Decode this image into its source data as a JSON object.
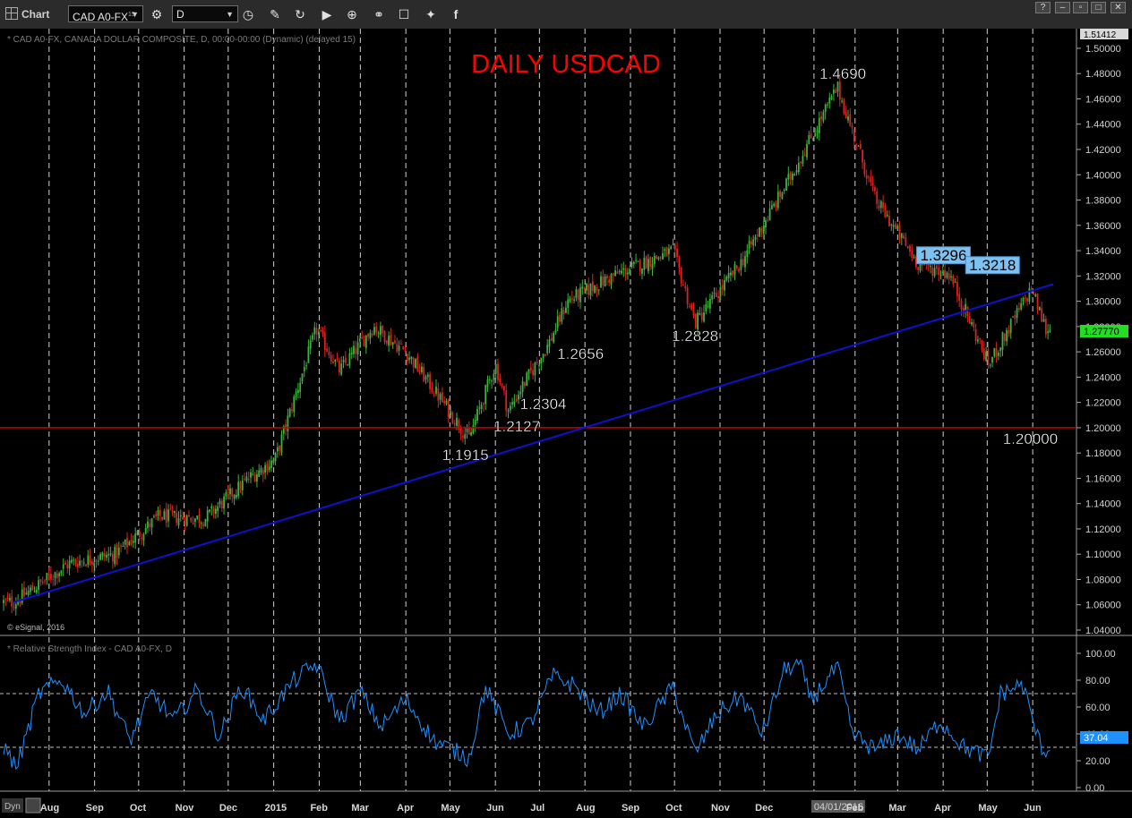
{
  "toolbar": {
    "app_label": "Chart",
    "symbol": "CAD A0-FX",
    "symbol_superscript": "15",
    "interval": "D"
  },
  "price_panel": {
    "legend": "* CAD A0-FX, CANADA DOLLAR COMPOSITE, D, 00:00-00:00 (Dynamic) (delayed 15)",
    "copyright": "© eSignal, 2016",
    "last_price_label": "1.27770",
    "top_price_label": "1.51412"
  },
  "rsi_panel": {
    "legend": "* Relative Strength Index - CAD A0-FX, D",
    "current_label": "37.04",
    "corner_label": "Dyn"
  },
  "colors": {
    "background": "#000000",
    "bull": "#3db33d",
    "bear": "#dd2222",
    "trendline": "#1010cc",
    "support": "#cc0000",
    "rsi_line": "#1e90ff",
    "title": "#ff0000",
    "highlight": "#7ec0ee"
  },
  "chart_data": [
    {
      "type": "candlestick",
      "title": "DAILY USDCAD",
      "x_labels": [
        "Aug",
        "Sep",
        "Oct",
        "Nov",
        "Dec",
        "2015",
        "Feb",
        "Mar",
        "Apr",
        "May",
        "Jun",
        "Jul",
        "Aug",
        "Sep",
        "Oct",
        "Nov",
        "Dec",
        "04/01/2016",
        "Feb",
        "Mar",
        "Apr",
        "May",
        "Jun"
      ],
      "ylim": [
        1.04,
        1.51412
      ],
      "y_ticks": [
        "1.04000",
        "1.06000",
        "1.08000",
        "1.10000",
        "1.12000",
        "1.14000",
        "1.16000",
        "1.18000",
        "1.20000",
        "1.22000",
        "1.24000",
        "1.26000",
        "1.28000",
        "1.30000",
        "1.32000",
        "1.34000",
        "1.36000",
        "1.38000",
        "1.40000",
        "1.42000",
        "1.44000",
        "1.46000",
        "1.48000",
        "1.50000"
      ],
      "key_points": [
        {
          "date": "2014-07-08",
          "close": 1.062
        },
        {
          "date": "2014-08-15",
          "close": 1.093
        },
        {
          "date": "2014-09-15",
          "close": 1.1
        },
        {
          "date": "2014-10-15",
          "close": 1.13
        },
        {
          "date": "2014-11-15",
          "close": 1.128
        },
        {
          "date": "2014-12-15",
          "close": 1.16
        },
        {
          "date": "2015-01-02",
          "close": 1.175
        },
        {
          "date": "2015-01-30",
          "close": 1.278
        },
        {
          "date": "2015-02-15",
          "close": 1.245
        },
        {
          "date": "2015-03-10",
          "close": 1.28
        },
        {
          "date": "2015-04-01",
          "close": 1.26
        },
        {
          "date": "2015-04-20",
          "close": 1.23
        },
        {
          "date": "2015-05-14",
          "close": 1.1915
        },
        {
          "date": "2015-06-01",
          "close": 1.25
        },
        {
          "date": "2015-06-18",
          "close": 1.2304
        },
        {
          "date": "2015-06-10",
          "close": 1.2127
        },
        {
          "date": "2015-07-07",
          "close": 1.2656
        },
        {
          "date": "2015-07-20",
          "close": 1.3
        },
        {
          "date": "2015-08-20",
          "close": 1.32
        },
        {
          "date": "2015-09-30",
          "close": 1.34
        },
        {
          "date": "2015-10-15",
          "close": 1.2828
        },
        {
          "date": "2015-11-15",
          "close": 1.33
        },
        {
          "date": "2015-12-15",
          "close": 1.39
        },
        {
          "date": "2016-01-20",
          "close": 1.469
        },
        {
          "date": "2016-02-15",
          "close": 1.38
        },
        {
          "date": "2016-03-15",
          "close": 1.3296
        },
        {
          "date": "2016-04-05",
          "close": 1.3218
        },
        {
          "date": "2016-05-02",
          "close": 1.25
        },
        {
          "date": "2016-05-31",
          "close": 1.31
        },
        {
          "date": "2016-06-10",
          "close": 1.2777
        }
      ],
      "annotations": [
        {
          "text": "1.4690",
          "date": "2016-01-20",
          "value": 1.469
        },
        {
          "text": "1.3296",
          "date": "2016-03-20",
          "value": 1.3296,
          "boxed": true
        },
        {
          "text": "1.3218",
          "date": "2016-04-20",
          "value": 1.3218,
          "boxed": true
        },
        {
          "text": "1.2828",
          "date": "2015-10-15",
          "value": 1.2828
        },
        {
          "text": "1.2656",
          "date": "2015-07-07",
          "value": 1.2656
        },
        {
          "text": "1.2304",
          "date": "2015-06-25",
          "value": 1.2304
        },
        {
          "text": "1.2127",
          "date": "2015-06-18",
          "value": 1.2127
        },
        {
          "text": "1.1915",
          "date": "2015-05-14",
          "value": 1.1915
        },
        {
          "text": "1.20000",
          "date": "2016-06-05",
          "value": 1.2
        }
      ],
      "support_line": 1.2,
      "trendline": [
        {
          "date": "2014-07-08",
          "value": 1.062
        },
        {
          "date": "2016-06-15",
          "value": 1.3135
        }
      ]
    },
    {
      "type": "line",
      "title": "Relative Strength Index - CAD A0-FX, D",
      "ylim": [
        -5,
        110
      ],
      "y_ticks": [
        "0.00",
        "20.00",
        "40.00",
        "60.00",
        "80.00",
        "100.00"
      ],
      "reference_levels": [
        70,
        30
      ],
      "series": [
        {
          "name": "Relative Strength Index",
          "points": [
            {
              "date": "2014-07-01",
              "value": 30
            },
            {
              "date": "2014-07-10",
              "value": 15
            },
            {
              "date": "2014-07-25",
              "value": 70
            },
            {
              "date": "2014-08-10",
              "value": 80
            },
            {
              "date": "2014-08-25",
              "value": 55
            },
            {
              "date": "2014-09-10",
              "value": 72
            },
            {
              "date": "2014-09-25",
              "value": 35
            },
            {
              "date": "2014-10-10",
              "value": 70
            },
            {
              "date": "2014-10-25",
              "value": 50
            },
            {
              "date": "2014-11-10",
              "value": 73
            },
            {
              "date": "2014-11-25",
              "value": 38
            },
            {
              "date": "2014-12-10",
              "value": 76
            },
            {
              "date": "2014-12-25",
              "value": 50
            },
            {
              "date": "2015-01-15",
              "value": 80
            },
            {
              "date": "2015-01-30",
              "value": 92
            },
            {
              "date": "2015-02-15",
              "value": 50
            },
            {
              "date": "2015-03-01",
              "value": 72
            },
            {
              "date": "2015-03-15",
              "value": 45
            },
            {
              "date": "2015-04-01",
              "value": 66
            },
            {
              "date": "2015-04-20",
              "value": 35
            },
            {
              "date": "2015-05-14",
              "value": 22
            },
            {
              "date": "2015-05-25",
              "value": 75
            },
            {
              "date": "2015-06-10",
              "value": 40
            },
            {
              "date": "2015-06-25",
              "value": 48
            },
            {
              "date": "2015-07-10",
              "value": 83
            },
            {
              "date": "2015-07-25",
              "value": 76
            },
            {
              "date": "2015-08-10",
              "value": 55
            },
            {
              "date": "2015-08-25",
              "value": 70
            },
            {
              "date": "2015-09-10",
              "value": 45
            },
            {
              "date": "2015-09-30",
              "value": 75
            },
            {
              "date": "2015-10-15",
              "value": 25
            },
            {
              "date": "2015-10-30",
              "value": 55
            },
            {
              "date": "2015-11-15",
              "value": 68
            },
            {
              "date": "2015-11-30",
              "value": 40
            },
            {
              "date": "2015-12-15",
              "value": 88
            },
            {
              "date": "2015-12-25",
              "value": 92
            },
            {
              "date": "2016-01-02",
              "value": 65
            },
            {
              "date": "2016-01-20",
              "value": 90
            },
            {
              "date": "2016-01-30",
              "value": 40
            },
            {
              "date": "2016-02-15",
              "value": 28
            },
            {
              "date": "2016-03-01",
              "value": 40
            },
            {
              "date": "2016-03-15",
              "value": 28
            },
            {
              "date": "2016-03-30",
              "value": 50
            },
            {
              "date": "2016-04-15",
              "value": 30
            },
            {
              "date": "2016-05-02",
              "value": 22
            },
            {
              "date": "2016-05-10",
              "value": 70
            },
            {
              "date": "2016-05-25",
              "value": 77
            },
            {
              "date": "2016-06-05",
              "value": 35
            },
            {
              "date": "2016-06-10",
              "value": 25
            },
            {
              "date": "2016-06-14",
              "value": 37
            }
          ]
        }
      ]
    }
  ]
}
